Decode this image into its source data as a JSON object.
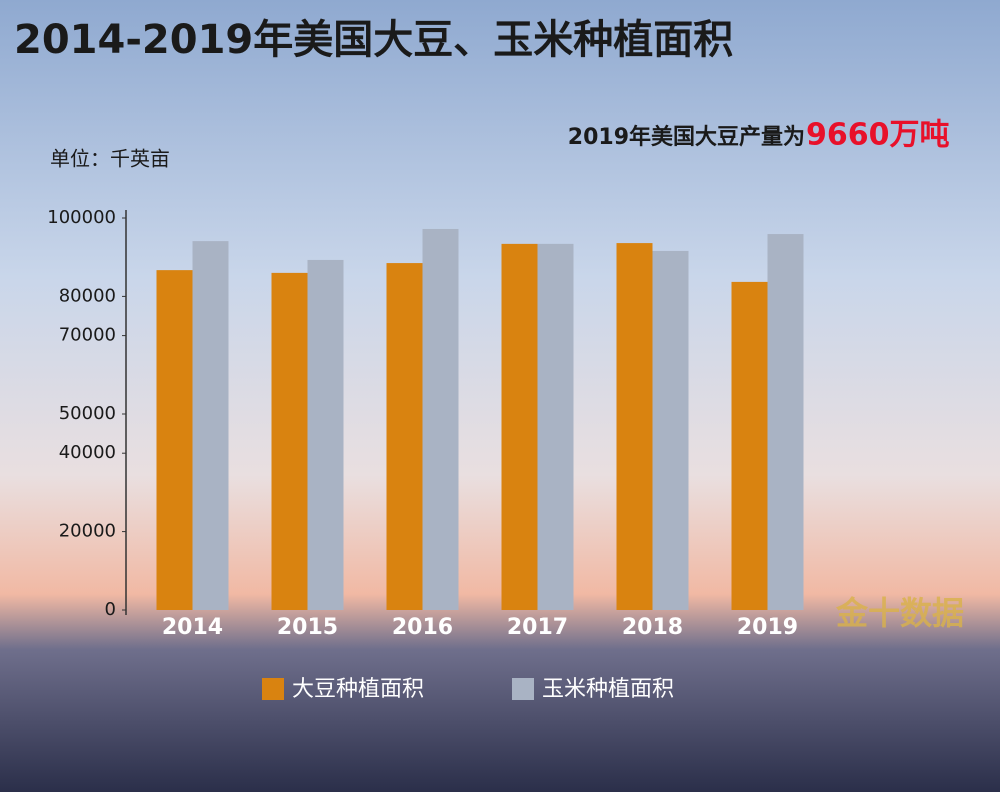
{
  "chart_data": {
    "type": "bar",
    "title": "2014-2019年美国大豆、玉米种植面积",
    "annotation": "2019年美国大豆产量为",
    "annotation_highlight": "9660万吨",
    "unit_label": "单位：千英亩",
    "watermark": "金十数据",
    "categories": [
      "2014",
      "2015",
      "2016",
      "2017",
      "2018",
      "2019"
    ],
    "series": [
      {
        "name": "大豆种植面积",
        "color": "#d98310",
        "values": [
          86700,
          86000,
          88500,
          93400,
          93600,
          83700
        ]
      },
      {
        "name": "玉米种植面积",
        "color": "#a9b3c4",
        "values": [
          94100,
          89300,
          97200,
          93400,
          91600,
          95900
        ]
      }
    ],
    "ylim": [
      0,
      100000
    ],
    "yticks": [
      0,
      20000,
      40000,
      50000,
      70000,
      80000,
      100000
    ],
    "highlight_color": "#e8102a"
  }
}
